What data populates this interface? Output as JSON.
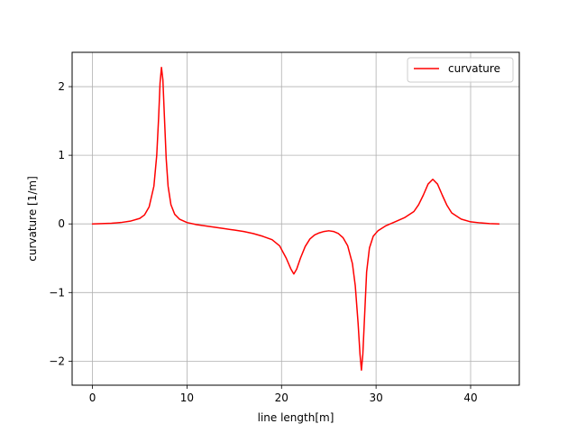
{
  "chart_data": {
    "type": "line",
    "xlabel": "line length[m]",
    "ylabel": "curvature [1/m]",
    "xlim": [
      -2.15,
      45.15
    ],
    "ylim": [
      -2.35,
      2.5
    ],
    "xticks": [
      0,
      10,
      20,
      30,
      40
    ],
    "xtick_labels": [
      "0",
      "10",
      "20",
      "30",
      "40"
    ],
    "yticks": [
      -2,
      -1,
      0,
      1,
      2
    ],
    "ytick_labels": [
      "−2",
      "−1",
      "0",
      "1",
      "2"
    ],
    "grid": true,
    "legend_position": "top-right",
    "series": [
      {
        "name": "curvature",
        "color": "#ff0000",
        "x": [
          0,
          1,
          2,
          3,
          4,
          5,
          5.5,
          6,
          6.5,
          6.8,
          7.0,
          7.15,
          7.3,
          7.45,
          7.6,
          7.8,
          8.0,
          8.3,
          8.7,
          9.2,
          10,
          11,
          12,
          13,
          14,
          15,
          16,
          17,
          18,
          19,
          19.8,
          20.5,
          21.0,
          21.3,
          21.6,
          22.0,
          22.5,
          23,
          23.5,
          24,
          24.5,
          25,
          25.5,
          26,
          26.5,
          27,
          27.5,
          27.8,
          28.1,
          28.3,
          28.45,
          28.6,
          28.8,
          29.0,
          29.3,
          29.7,
          30.2,
          31,
          32,
          33,
          34,
          34.5,
          35,
          35.5,
          36.0,
          36.5,
          37,
          37.5,
          38,
          39,
          40,
          41,
          42,
          43
        ],
        "y": [
          0,
          0.005,
          0.01,
          0.02,
          0.04,
          0.08,
          0.13,
          0.25,
          0.55,
          1.0,
          1.55,
          2.05,
          2.28,
          2.1,
          1.6,
          0.95,
          0.55,
          0.28,
          0.14,
          0.07,
          0.02,
          -0.01,
          -0.03,
          -0.05,
          -0.07,
          -0.09,
          -0.11,
          -0.14,
          -0.18,
          -0.23,
          -0.32,
          -0.5,
          -0.66,
          -0.73,
          -0.66,
          -0.5,
          -0.33,
          -0.22,
          -0.16,
          -0.13,
          -0.11,
          -0.1,
          -0.11,
          -0.14,
          -0.2,
          -0.32,
          -0.58,
          -0.9,
          -1.45,
          -1.9,
          -2.13,
          -1.9,
          -1.3,
          -0.7,
          -0.35,
          -0.18,
          -0.1,
          -0.03,
          0.03,
          0.09,
          0.18,
          0.28,
          0.42,
          0.58,
          0.65,
          0.58,
          0.42,
          0.27,
          0.16,
          0.07,
          0.03,
          0.015,
          0.005,
          0
        ]
      }
    ]
  }
}
